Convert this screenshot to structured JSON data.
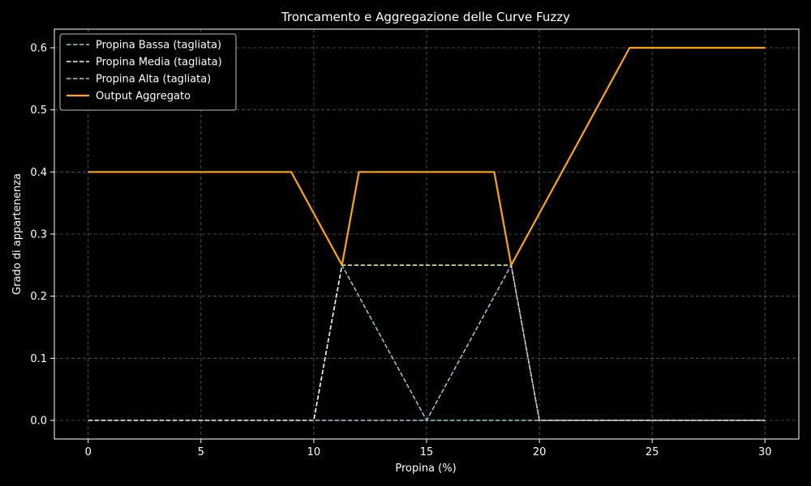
{
  "chart_data": {
    "type": "line",
    "title": "Troncamento e Aggregazione delle Curve Fuzzy",
    "xlabel": "Propina (%)",
    "ylabel": "Grado di appartenenza",
    "xlim": [
      -1.5,
      31.5
    ],
    "ylim": [
      -0.03,
      0.63
    ],
    "x_ticks": [
      0,
      5,
      10,
      15,
      20,
      25,
      30
    ],
    "x_tick_labels": [
      "0",
      "5",
      "10",
      "15",
      "20",
      "25",
      "30"
    ],
    "y_ticks": [
      0.0,
      0.1,
      0.2,
      0.3,
      0.4,
      0.5,
      0.6
    ],
    "y_tick_labels": [
      "0.0",
      "0.1",
      "0.2",
      "0.3",
      "0.4",
      "0.5",
      "0.6"
    ],
    "grid": true,
    "legend_position": "top-left",
    "series": [
      {
        "name": "Propina Bassa (tagliata)",
        "color": "#8dd3c7",
        "style": "dashed",
        "x": [
          0,
          10,
          11.25,
          15,
          30
        ],
        "y": [
          0,
          0,
          0.25,
          0,
          0
        ]
      },
      {
        "name": "Propina Media (tagliata)",
        "color": "#ffffb3",
        "style": "dashed",
        "x": [
          0,
          10,
          11.25,
          18.75,
          20,
          30
        ],
        "y": [
          0,
          0,
          0.25,
          0.25,
          0,
          0
        ]
      },
      {
        "name": "Propina Alta (tagliata)",
        "color": "#bebada",
        "style": "dashed",
        "x": [
          0,
          15,
          18.75,
          20,
          30
        ],
        "y": [
          0,
          0,
          0.25,
          0,
          0
        ]
      },
      {
        "name": "Output Aggregato",
        "color": "#ffa500",
        "style": "solid",
        "x": [
          0,
          9,
          11.25,
          12,
          18,
          18.75,
          24,
          30
        ],
        "y": [
          0.4,
          0.4,
          0.25,
          0.4,
          0.4,
          0.25,
          0.6,
          0.6
        ]
      }
    ]
  }
}
